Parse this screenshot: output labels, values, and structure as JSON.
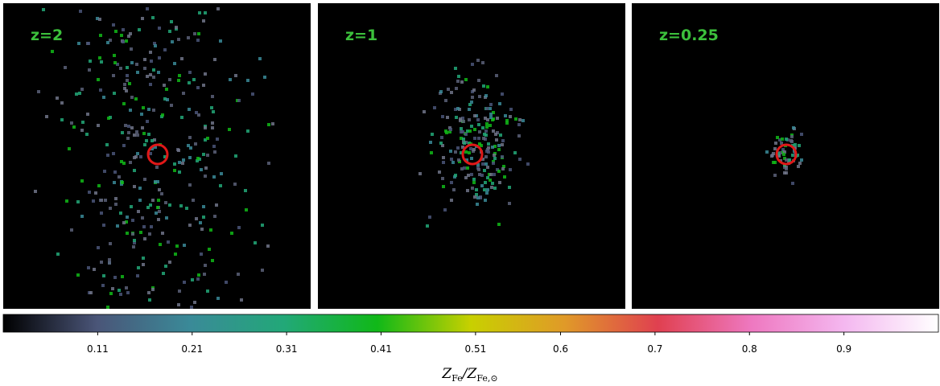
{
  "chart_data": {
    "type": "image-panels",
    "panels": [
      {
        "label": "z=2"
      },
      {
        "label": "z=1"
      },
      {
        "label": "z=0.25"
      }
    ],
    "colorbar": {
      "lim": [
        0.01,
        1.0
      ],
      "ticks": [
        0.11,
        0.21,
        0.31,
        0.41,
        0.51,
        0.6,
        0.7,
        0.8,
        0.9
      ],
      "colors": [
        "#000000",
        "#4a5578",
        "#3a8a98",
        "#22a878",
        "#10b818",
        "#c8d000",
        "#e09a28",
        "#e04050",
        "#ee78c0",
        "#f4b8f0",
        "#ffffff"
      ],
      "label_parts": [
        {
          "text": "Z"
        },
        {
          "text": "Fe",
          "sub": true
        },
        {
          "text": "/"
        },
        {
          "text": "Z"
        },
        {
          "text": "Fe,⊙",
          "sub": true
        }
      ]
    }
  }
}
